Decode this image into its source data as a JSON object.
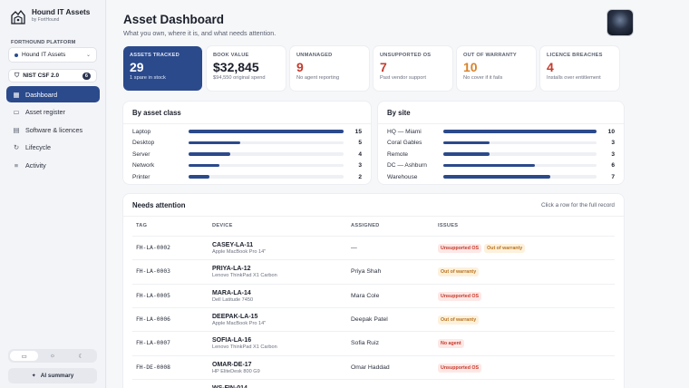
{
  "app": {
    "name": "Hound IT Assets",
    "byline": "by FortHound"
  },
  "sidebar": {
    "section_label": "FORTHOUND PLATFORM",
    "org_select": "Hound IT Assets",
    "framework": {
      "label": "NIST CSF 2.0",
      "badge": "6"
    },
    "nav": [
      {
        "label": "Dashboard",
        "icon": "grid-icon",
        "glyph": "▦",
        "active": true
      },
      {
        "label": "Asset register",
        "icon": "monitor-icon",
        "glyph": "▭"
      },
      {
        "label": "Software & licences",
        "icon": "document-icon",
        "glyph": "▤"
      },
      {
        "label": "Lifecycle",
        "icon": "refresh-icon",
        "glyph": "↻"
      },
      {
        "label": "Activity",
        "icon": "list-icon",
        "glyph": "≡"
      }
    ],
    "theme_options": [
      "monitor-icon",
      "sun-icon",
      "moon-icon"
    ],
    "ai_summary": "AI summary"
  },
  "header": {
    "title": "Asset Dashboard",
    "subtitle": "What you own, where it is, and what needs attention."
  },
  "stats": [
    {
      "label": "ASSETS TRACKED",
      "value": "29",
      "note": "1 spare in stock",
      "tone": "white"
    },
    {
      "label": "BOOK VALUE",
      "value": "$32,845",
      "note": "$94,550 original spend",
      "tone": "dark"
    },
    {
      "label": "UNMANAGED",
      "value": "9",
      "note": "No agent reporting",
      "tone": "red"
    },
    {
      "label": "UNSUPPORTED OS",
      "value": "7",
      "note": "Past vendor support",
      "tone": "red"
    },
    {
      "label": "OUT OF WARRANTY",
      "value": "10",
      "note": "No cover if it fails",
      "tone": "orange"
    },
    {
      "label": "LICENCE BREACHES",
      "value": "4",
      "note": "Installs over entitlement",
      "tone": "red"
    }
  ],
  "by_class": {
    "title": "By asset class",
    "max": 15,
    "rows": [
      {
        "label": "Laptop",
        "count": 15
      },
      {
        "label": "Desktop",
        "count": 5
      },
      {
        "label": "Server",
        "count": 4
      },
      {
        "label": "Network",
        "count": 3
      },
      {
        "label": "Printer",
        "count": 2
      }
    ]
  },
  "by_site": {
    "title": "By site",
    "max": 10,
    "rows": [
      {
        "label": "HQ — Miami",
        "count": 10
      },
      {
        "label": "Coral Gables",
        "count": 3
      },
      {
        "label": "Remote",
        "count": 3
      },
      {
        "label": "DC — Ashburn",
        "count": 6
      },
      {
        "label": "Warehouse",
        "count": 7
      }
    ]
  },
  "attention": {
    "title": "Needs attention",
    "hint": "Click a row for the full record",
    "columns": [
      "TAG",
      "DEVICE",
      "ASSIGNED",
      "ISSUES"
    ],
    "rows": [
      {
        "tag": "FH-LA-0002",
        "device": "CASEY-LA-11",
        "model": "Apple MacBook Pro 14\"",
        "assigned": "—",
        "issues": [
          {
            "text": "Unsupported OS",
            "kind": "os"
          },
          {
            "text": "Out of warranty",
            "kind": "warranty"
          }
        ]
      },
      {
        "tag": "FH-LA-0003",
        "device": "PRIYA-LA-12",
        "model": "Lenovo ThinkPad X1 Carbon",
        "assigned": "Priya Shah",
        "issues": [
          {
            "text": "Out of warranty",
            "kind": "warranty"
          }
        ]
      },
      {
        "tag": "FH-LA-0005",
        "device": "MARA-LA-14",
        "model": "Dell Latitude 7450",
        "assigned": "Mara Cole",
        "issues": [
          {
            "text": "Unsupported OS",
            "kind": "os"
          }
        ]
      },
      {
        "tag": "FH-LA-0006",
        "device": "DEEPAK-LA-15",
        "model": "Apple MacBook Pro 14\"",
        "assigned": "Deepak Patel",
        "issues": [
          {
            "text": "Out of warranty",
            "kind": "warranty"
          }
        ]
      },
      {
        "tag": "FH-LA-0007",
        "device": "SOFIA-LA-16",
        "model": "Lenovo ThinkPad X1 Carbon",
        "assigned": "Sofia Ruiz",
        "issues": [
          {
            "text": "No agent",
            "kind": "agent"
          }
        ]
      },
      {
        "tag": "FH-DE-0008",
        "device": "OMAR-DE-17",
        "model": "HP EliteDesk 800 G9",
        "assigned": "Omar Haddad",
        "issues": [
          {
            "text": "Unsupported OS",
            "kind": "os"
          }
        ]
      },
      {
        "tag": "",
        "device": "WS-FIN-014",
        "model": "",
        "assigned": "",
        "issues": []
      }
    ]
  },
  "colors": {
    "accent": "#2b4a8c",
    "danger": "#c43b2c",
    "warning": "#d9822b"
  }
}
